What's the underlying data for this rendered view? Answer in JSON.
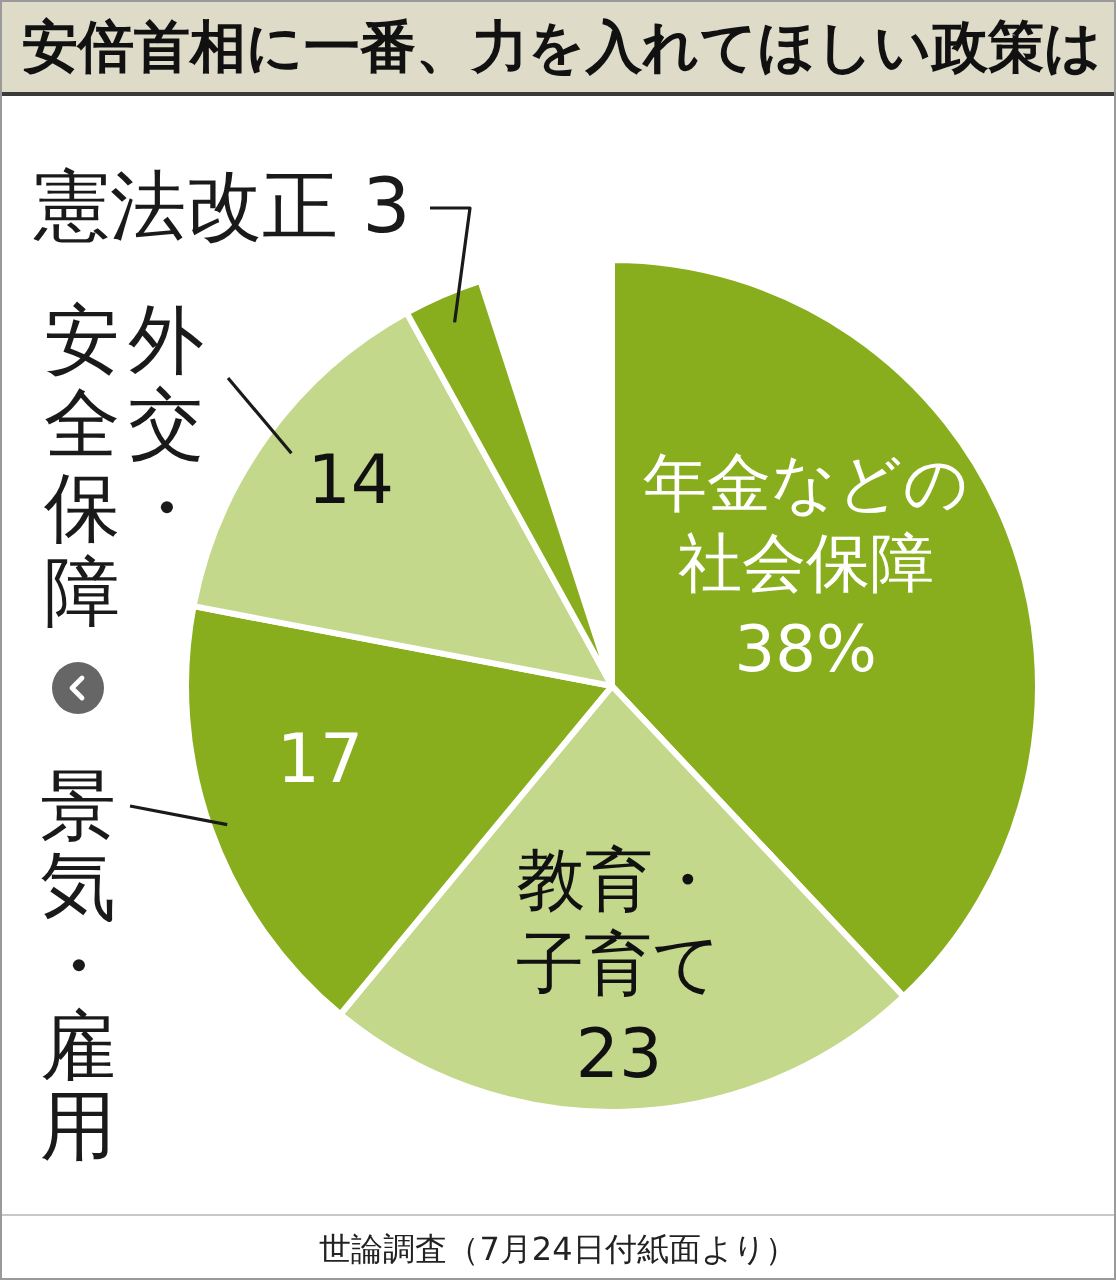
{
  "chart_data": {
    "type": "pie",
    "title": "安倍首相に一番、力を入れてほしい政策は",
    "categories": [
      "年金などの社会保障",
      "教育・子育て",
      "景気・雇用",
      "外交・安全保障",
      "憲法改正"
    ],
    "values": [
      38,
      23,
      17,
      14,
      3
    ],
    "colors": [
      "#88ae1e",
      "#c4d88c",
      "#88ae1e",
      "#c4d88c",
      "#88ae1e"
    ],
    "value_labels": [
      "38%",
      "23",
      "17",
      "14",
      "3"
    ],
    "annotations": [
      "世論調査（7月24日付紙面より）"
    ]
  }
}
